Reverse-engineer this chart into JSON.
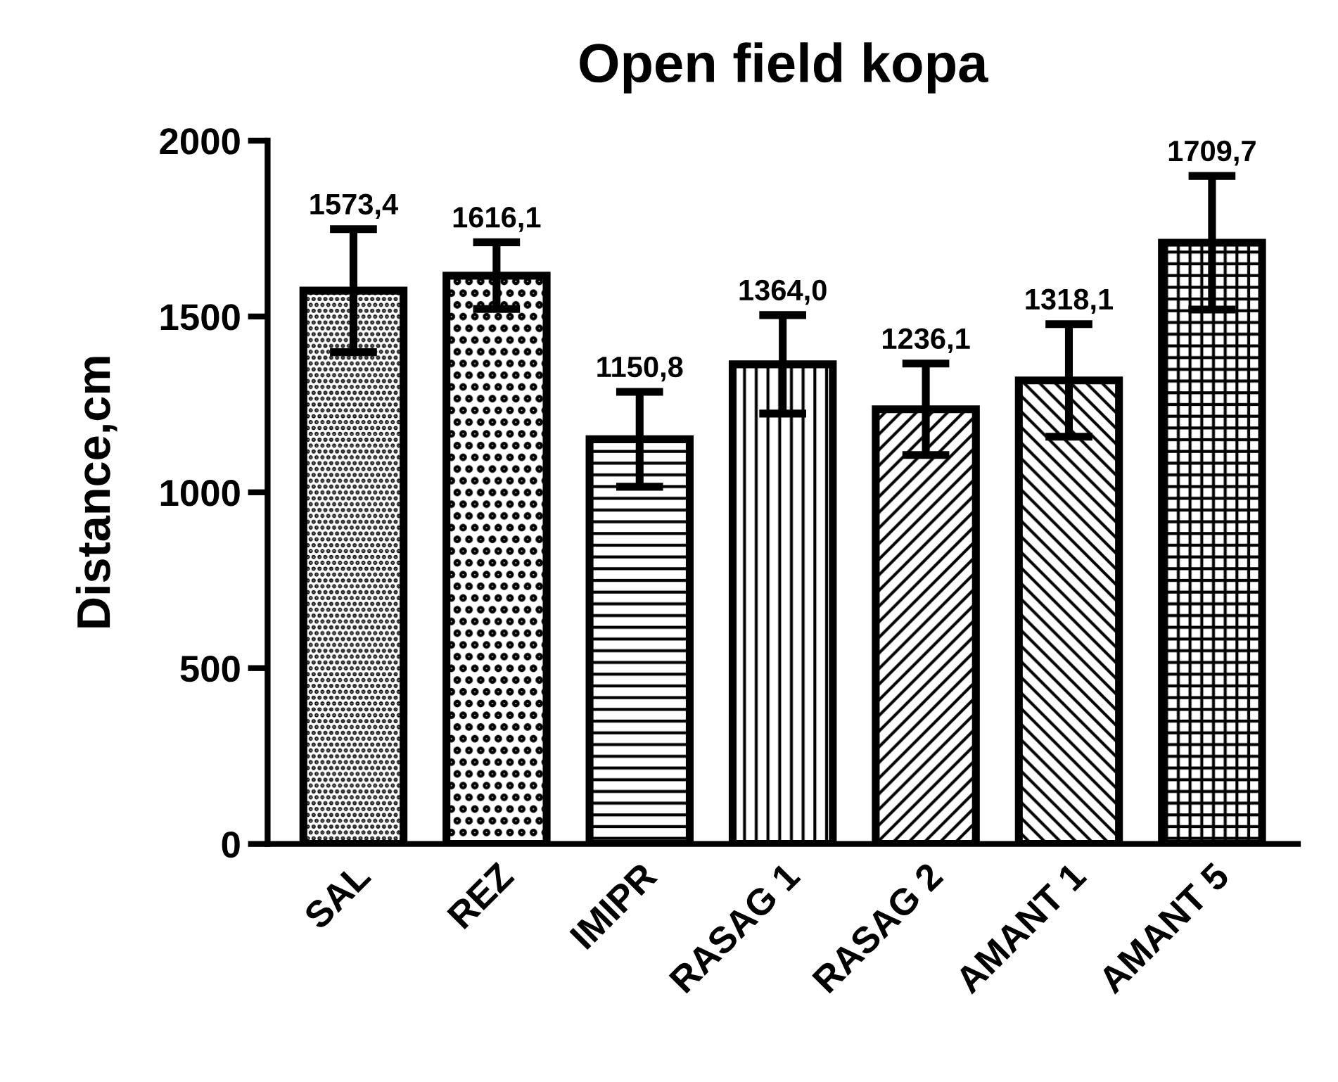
{
  "chart_data": {
    "type": "bar",
    "title": "Open field kopa",
    "ylabel": "Distance,cm",
    "categories": [
      "SAL",
      "REZ",
      "IMIPR",
      "RASAG 1",
      "RASAG 2",
      "AMANT 1",
      "AMANT 5"
    ],
    "values": [
      1573.4,
      1616.1,
      1150.8,
      1364.0,
      1236.1,
      1318.1,
      1709.7
    ],
    "errors": [
      175,
      95,
      135,
      140,
      130,
      160,
      190
    ],
    "value_labels": [
      "1573,4",
      "1616,1",
      "1150,8",
      "1364,0",
      "1236,1",
      "1318,1",
      "1709,7"
    ],
    "color": "#000000",
    "ylim": [
      0,
      2000
    ],
    "yticks": [
      0,
      500,
      1000,
      1500,
      2000
    ],
    "grid": false,
    "legend": false
  }
}
